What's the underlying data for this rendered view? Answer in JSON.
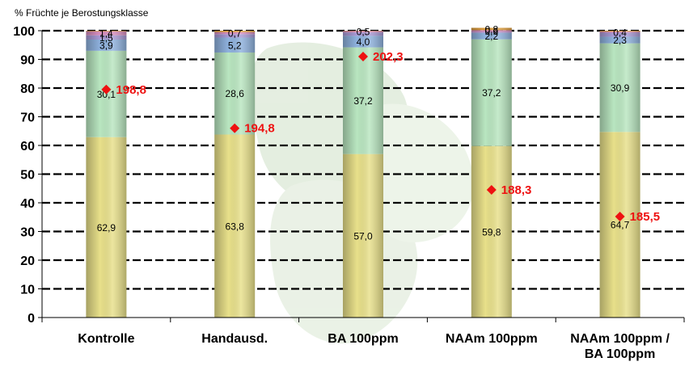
{
  "chart_data": {
    "type": "bar",
    "stacked": true,
    "ylabel": "% Früchte je Berostungsklasse",
    "ylim": [
      0,
      100
    ],
    "yticks": [
      0,
      10,
      20,
      30,
      40,
      50,
      60,
      70,
      80,
      90,
      100
    ],
    "grid": true,
    "categories": [
      "Kontrolle",
      "Handausd.",
      "BA 100ppm",
      "NAAm 100ppm",
      "NAAm 100ppm / BA 100ppm"
    ],
    "category_lines": [
      [
        "Kontrolle"
      ],
      [
        "Handausd."
      ],
      [
        "BA 100ppm"
      ],
      [
        "NAAm 100ppm"
      ],
      [
        "NAAm 100ppm /",
        "BA 100ppm"
      ]
    ],
    "series": [
      {
        "values": [
          62.9,
          63.8,
          57.0,
          59.8,
          64.7
        ],
        "labels": [
          "62,9",
          "63,8",
          "57,0",
          "59,8",
          "64,7"
        ],
        "color": "#e8e08a"
      },
      {
        "values": [
          30.1,
          28.6,
          37.2,
          37.2,
          30.9
        ],
        "labels": [
          "30,1",
          "28,6",
          "37,2",
          "37,2",
          "30,9"
        ],
        "color": "#b9e6c0"
      },
      {
        "values": [
          3.9,
          5.2,
          4.0,
          2.2,
          2.3
        ],
        "labels": [
          "3,9",
          "5,2",
          "4,0",
          "2,2",
          "2,3"
        ],
        "color": "#8fb2de"
      },
      {
        "values": [
          1.5,
          1.2,
          1.2,
          0.4,
          1.4
        ],
        "labels": [
          "1,5",
          "",
          "",
          "",
          ""
        ],
        "color": "#a99bd6"
      },
      {
        "values": [
          1.4,
          0.7,
          0.5,
          0.6,
          0.4
        ],
        "labels": [
          "1,4",
          "0,7",
          "0,5",
          "0,6",
          "0,4"
        ],
        "color": "#d98fc0"
      },
      {
        "values": [
          0.2,
          0.5,
          0.1,
          0.8,
          0.3
        ],
        "labels": [
          "",
          "",
          "",
          "0,8",
          ""
        ],
        "color": "#e0a040"
      }
    ],
    "markers": {
      "values": [
        79.5,
        66.0,
        91.0,
        44.5,
        35.2
      ],
      "labels": [
        "198,8",
        "194,8",
        "202,3",
        "188,3",
        "185,5"
      ],
      "color": "#ee1111"
    }
  }
}
